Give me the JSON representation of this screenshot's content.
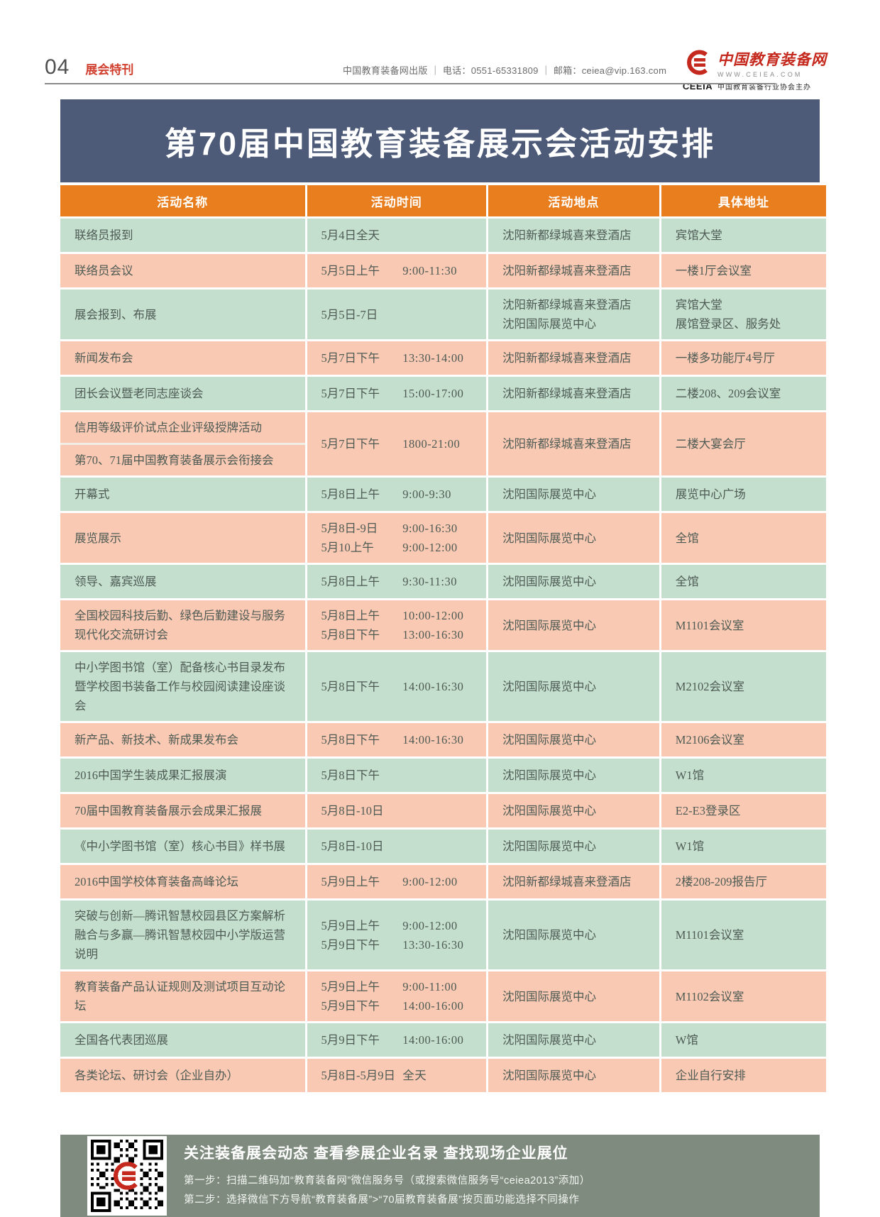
{
  "page_header": {
    "page_number": "04",
    "section_label": "展会特刊",
    "publisher_info": "中国教育装备网出版 ｜ 电话：0551-65331809 ｜ 邮箱：ceiea@vip.163.com",
    "logo": {
      "site_name": "中国教育装备网",
      "site_url": "WWW.CEIEA.COM",
      "org_abbr": "CEEIA",
      "org_name": "中国教育装备行业协会主办",
      "brand_color": "#c5281c"
    }
  },
  "title_banner": {
    "text": "第70届中国教育装备展示会活动安排",
    "bg_color": "#4d5a78"
  },
  "table": {
    "columns": [
      "活动名称",
      "活动时间",
      "活动地点",
      "具体地址"
    ],
    "header_bg": "#e87e1e",
    "row_green": "#c4dfce",
    "row_pink": "#f9c9b3",
    "rows": [
      {
        "bg": "green",
        "name_split": false,
        "name_lines": [
          "联络员报到"
        ],
        "schedule": [
          [
            "5月4日全天",
            ""
          ]
        ],
        "location_lines": [
          "沈阳新都绿城喜来登酒店"
        ],
        "address_lines": [
          "宾馆大堂"
        ]
      },
      {
        "bg": "pink",
        "name_split": false,
        "name_lines": [
          "联络员会议"
        ],
        "schedule": [
          [
            "5月5日上午",
            "9:00-11:30"
          ]
        ],
        "location_lines": [
          "沈阳新都绿城喜来登酒店"
        ],
        "address_lines": [
          "一楼1厅会议室"
        ]
      },
      {
        "bg": "green",
        "name_split": false,
        "name_lines": [
          "展会报到、布展"
        ],
        "schedule": [
          [
            "5月5日-7日",
            ""
          ]
        ],
        "location_lines": [
          "沈阳新都绿城喜来登酒店",
          "沈阳国际展览中心"
        ],
        "address_lines": [
          "宾馆大堂",
          "展馆登录区、服务处"
        ]
      },
      {
        "bg": "pink",
        "name_split": false,
        "name_lines": [
          "新闻发布会"
        ],
        "schedule": [
          [
            "5月7日下午",
            "13:30-14:00"
          ]
        ],
        "location_lines": [
          "沈阳新都绿城喜来登酒店"
        ],
        "address_lines": [
          "一楼多功能厅4号厅"
        ]
      },
      {
        "bg": "green",
        "name_split": false,
        "name_lines": [
          "团长会议暨老同志座谈会"
        ],
        "schedule": [
          [
            "5月7日下午",
            "15:00-17:00"
          ]
        ],
        "location_lines": [
          "沈阳新都绿城喜来登酒店"
        ],
        "address_lines": [
          "二楼208、209会议室"
        ]
      },
      {
        "bg": "pink",
        "name_split": true,
        "name_lines": [
          "信用等级评价试点企业评级授牌活动",
          "第70、71届中国教育装备展示会衔接会"
        ],
        "schedule": [
          [
            "5月7日下午",
            "1800-21:00"
          ]
        ],
        "location_lines": [
          "沈阳新都绿城喜来登酒店"
        ],
        "address_lines": [
          "二楼大宴会厅"
        ]
      },
      {
        "bg": "green",
        "name_split": false,
        "name_lines": [
          "开幕式"
        ],
        "schedule": [
          [
            "5月8日上午",
            "9:00-9:30"
          ]
        ],
        "location_lines": [
          "沈阳国际展览中心"
        ],
        "address_lines": [
          "展览中心广场"
        ]
      },
      {
        "bg": "pink",
        "name_split": false,
        "name_lines": [
          "展览展示"
        ],
        "schedule": [
          [
            "5月8日-9日",
            "9:00-16:30"
          ],
          [
            "5月10上午",
            "9:00-12:00"
          ]
        ],
        "location_lines": [
          "沈阳国际展览中心"
        ],
        "address_lines": [
          "全馆"
        ]
      },
      {
        "bg": "green",
        "name_split": false,
        "name_lines": [
          "领导、嘉宾巡展"
        ],
        "schedule": [
          [
            "5月8日上午",
            "9:30-11:30"
          ]
        ],
        "location_lines": [
          "沈阳国际展览中心"
        ],
        "address_lines": [
          "全馆"
        ]
      },
      {
        "bg": "pink",
        "name_split": false,
        "name_lines": [
          "全国校园科技后勤、绿色后勤建设与服务现代化交流研讨会"
        ],
        "schedule": [
          [
            "5月8日上午",
            "10:00-12:00"
          ],
          [
            "5月8日下午",
            "13:00-16:30"
          ]
        ],
        "location_lines": [
          "沈阳国际展览中心"
        ],
        "address_lines": [
          "M1101会议室"
        ]
      },
      {
        "bg": "green",
        "name_split": false,
        "name_lines": [
          "中小学图书馆（室）配备核心书目录发布暨学校图书装备工作与校园阅读建设座谈会"
        ],
        "schedule": [
          [
            "5月8日下午",
            "14:00-16:30"
          ]
        ],
        "location_lines": [
          "沈阳国际展览中心"
        ],
        "address_lines": [
          "M2102会议室"
        ]
      },
      {
        "bg": "pink",
        "name_split": false,
        "name_lines": [
          "新产品、新技术、新成果发布会"
        ],
        "schedule": [
          [
            "5月8日下午",
            "14:00-16:30"
          ]
        ],
        "location_lines": [
          "沈阳国际展览中心"
        ],
        "address_lines": [
          "M2106会议室"
        ]
      },
      {
        "bg": "green",
        "name_split": false,
        "name_lines": [
          "2016中国学生装成果汇报展演"
        ],
        "schedule": [
          [
            "5月8日下午",
            ""
          ]
        ],
        "location_lines": [
          "沈阳国际展览中心"
        ],
        "address_lines": [
          "W1馆"
        ]
      },
      {
        "bg": "pink",
        "name_split": false,
        "name_lines": [
          "70届中国教育装备展示会成果汇报展"
        ],
        "schedule": [
          [
            "5月8日-10日",
            ""
          ]
        ],
        "location_lines": [
          "沈阳国际展览中心"
        ],
        "address_lines": [
          "E2-E3登录区"
        ]
      },
      {
        "bg": "green",
        "name_split": false,
        "name_lines": [
          "《中小学图书馆（室）核心书目》样书展"
        ],
        "schedule": [
          [
            "5月8日-10日",
            ""
          ]
        ],
        "location_lines": [
          "沈阳国际展览中心"
        ],
        "address_lines": [
          "W1馆"
        ]
      },
      {
        "bg": "pink",
        "name_split": false,
        "name_lines": [
          "2016中国学校体育装备高峰论坛"
        ],
        "schedule": [
          [
            "5月9日上午",
            "9:00-12:00"
          ]
        ],
        "location_lines": [
          "沈阳新都绿城喜来登酒店"
        ],
        "address_lines": [
          "2楼208-209报告厅"
        ]
      },
      {
        "bg": "green",
        "name_split": false,
        "name_lines": [
          "突破与创新—腾讯智慧校园县区方案解析",
          "融合与多赢—腾讯智慧校园中小学版运营说明"
        ],
        "schedule": [
          [
            "5月9日上午",
            "9:00-12:00"
          ],
          [
            "5月9日下午",
            "13:30-16:30"
          ]
        ],
        "location_lines": [
          "沈阳国际展览中心"
        ],
        "address_lines": [
          "M1101会议室"
        ]
      },
      {
        "bg": "pink",
        "name_split": false,
        "name_lines": [
          "教育装备产品认证规则及测试项目互动论坛"
        ],
        "schedule": [
          [
            "5月9日上午",
            "9:00-11:00"
          ],
          [
            "5月9日下午",
            "14:00-16:00"
          ]
        ],
        "location_lines": [
          "沈阳国际展览中心"
        ],
        "address_lines": [
          "M1102会议室"
        ]
      },
      {
        "bg": "green",
        "name_split": false,
        "name_lines": [
          "全国各代表团巡展"
        ],
        "schedule": [
          [
            "5月9日下午",
            "14:00-16:00"
          ]
        ],
        "location_lines": [
          "沈阳国际展览中心"
        ],
        "address_lines": [
          "W馆"
        ]
      },
      {
        "bg": "pink",
        "name_split": false,
        "name_lines": [
          "各类论坛、研讨会（企业自办）"
        ],
        "schedule": [
          [
            "5月8日-5月9日",
            "全天"
          ]
        ],
        "location_lines": [
          "沈阳国际展览中心"
        ],
        "address_lines": [
          "企业自行安排"
        ]
      }
    ]
  },
  "wechat_banner": {
    "bg_color": "#7e8b7e",
    "qr_label": "教育装备网微信服务号二维码",
    "title": "关注装备展会动态 查看参展企业名录 查找现场企业展位",
    "step1": "第一步：扫描二维码加“教育装备网”微信服务号（或搜索微信服务号“ceiea2013”添加）",
    "step2": "第二步：选择微信下方导航“教育装备展”>“70届教育装备展”按页面功能选择不同操作"
  }
}
